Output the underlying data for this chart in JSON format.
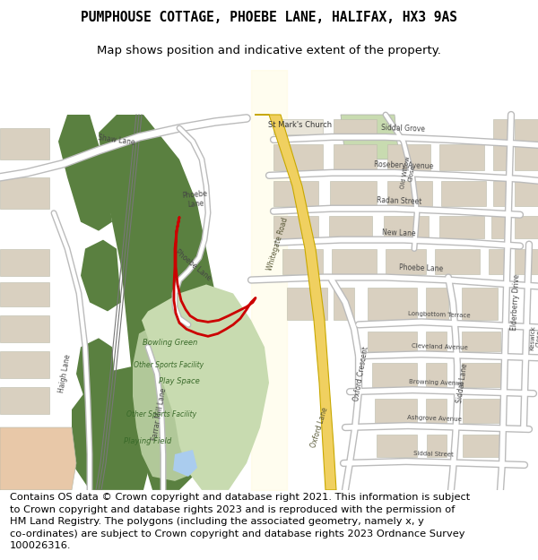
{
  "title": "PUMPHOUSE COTTAGE, PHOEBE LANE, HALIFAX, HX3 9AS",
  "subtitle": "Map shows position and indicative extent of the property.",
  "footer_lines": [
    "Contains OS data © Crown copyright and database right 2021. This information is subject",
    "to Crown copyright and database rights 2023 and is reproduced with the permission of",
    "HM Land Registry. The polygons (including the associated geometry, namely x, y",
    "co-ordinates) are subject to Crown copyright and database rights 2023 Ordnance Survey",
    "100026316."
  ],
  "map_bg": "#f0ece4",
  "building_color": "#d9d0c0",
  "building_edge": "#bbbbaa",
  "green_dark": "#5a8040",
  "green_light": "#c8dbb0",
  "yellow_road": "#f0d060",
  "yellow_road_edge": "#c8a800",
  "road_color": "#ffffff",
  "road_outline": "#bbbbbb",
  "rail_color": "#888888",
  "plot_color": "#cc0000",
  "water_color": "#aaccee",
  "peach_color": "#e8c8a8",
  "title_fontsize": 10.5,
  "subtitle_fontsize": 9.5,
  "footer_fontsize": 8.2
}
